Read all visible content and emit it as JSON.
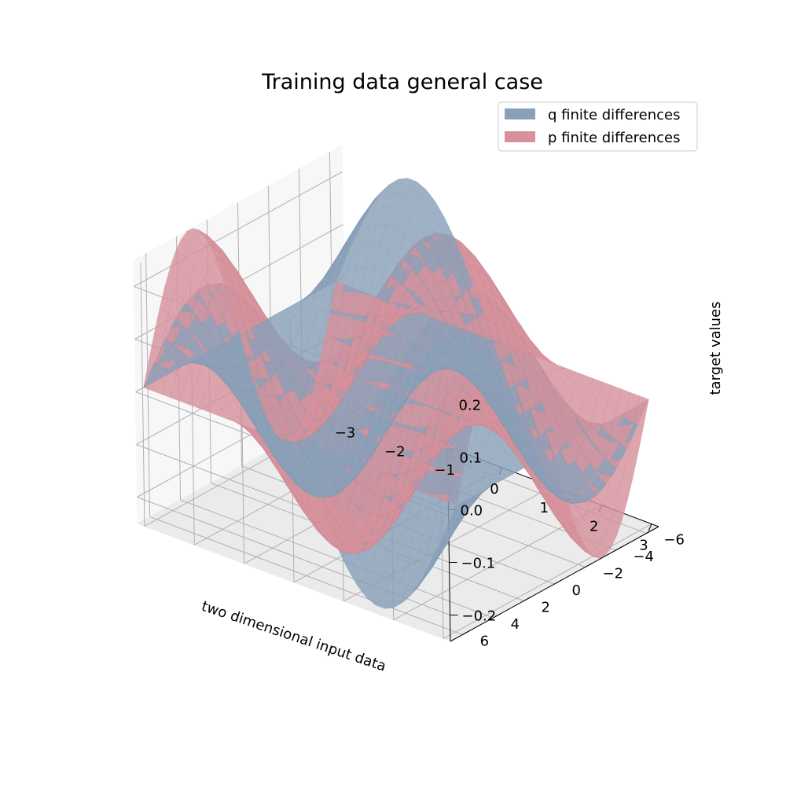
{
  "chart_data": {
    "type": "surface3d",
    "title": "Training data general case",
    "xlabel": "two dimensional input data",
    "ylabel": "",
    "zlabel": "target values",
    "xlim": [
      -3.14159,
      3.14159
    ],
    "ylim": [
      -6.8,
      6.8
    ],
    "zlim": [
      -0.25,
      0.25
    ],
    "xticks": [
      -3,
      -2,
      -1,
      0,
      1,
      2,
      3
    ],
    "xtick_labels": [
      "−3",
      "−2",
      "−1",
      "0",
      "1",
      "2",
      "3"
    ],
    "yticks": [
      -6,
      -4,
      -2,
      0,
      2,
      4,
      6
    ],
    "ytick_labels": [
      "−6",
      "−4",
      "−2",
      "0",
      "2",
      "4",
      "6"
    ],
    "zticks": [
      -0.2,
      -0.1,
      0.0,
      0.1,
      0.2
    ],
    "ztick_labels": [
      "−0.2",
      "−0.1",
      "0.0",
      "0.1",
      "0.2"
    ],
    "grid": true,
    "legend_position": "top-right",
    "series": [
      {
        "name": "q finite differences",
        "color": "#8aa0b8",
        "edge_color": "#6f89a6",
        "formula": "z = 0.25 * sin(x) * cos(y / 2)",
        "amplitude": 0.25
      },
      {
        "name": "p finite differences",
        "color": "#d6919b",
        "edge_color": "#c46f7c",
        "formula": "z = -0.25 * cos(x) * sin(y / 2)",
        "amplitude": 0.25
      }
    ]
  }
}
